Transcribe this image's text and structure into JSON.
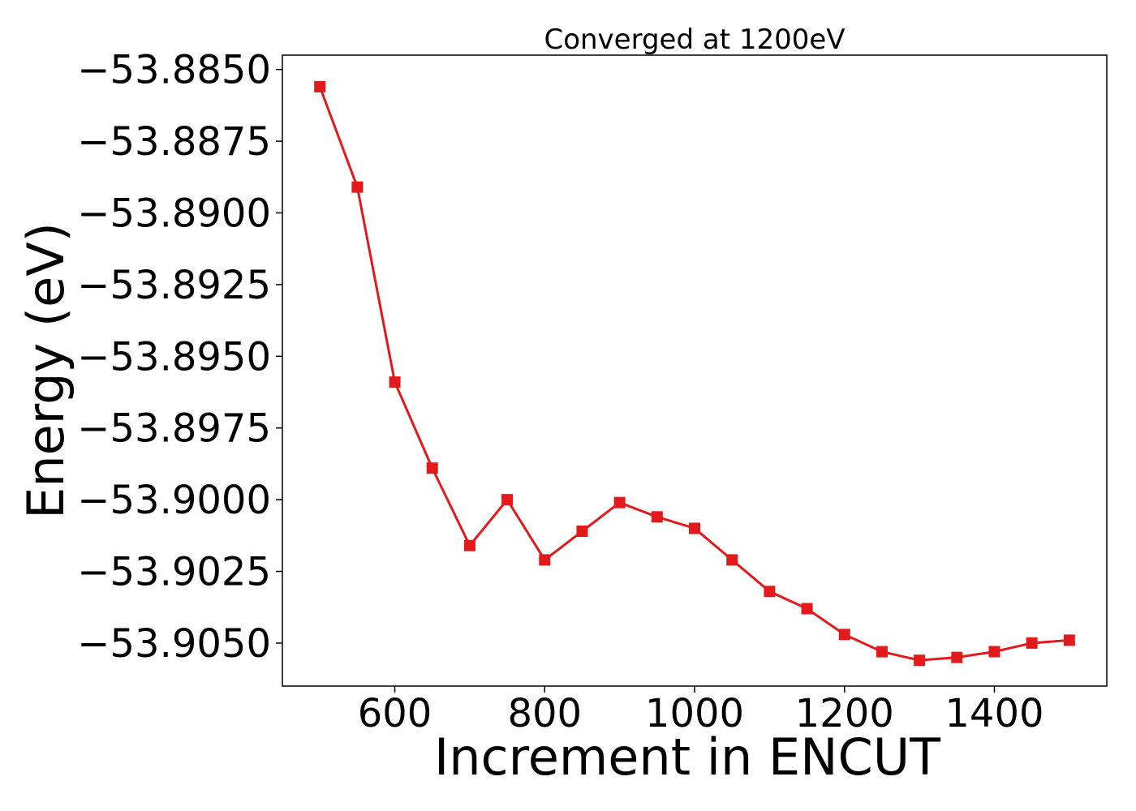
{
  "chart_data": {
    "type": "line",
    "title": "Converged at 1200eV",
    "xlabel": "Increment in ENCUT",
    "ylabel": "Energy (eV)",
    "xlim": [
      450,
      1550
    ],
    "ylim": [
      -53.9065,
      -53.8845
    ],
    "xticks": [
      600,
      800,
      1000,
      1200,
      1400
    ],
    "xtick_labels": [
      "600",
      "800",
      "1000",
      "1200",
      "1400"
    ],
    "yticks": [
      -53.885,
      -53.8875,
      -53.89,
      -53.8925,
      -53.895,
      -53.8975,
      -53.9,
      -53.9025,
      -53.905
    ],
    "ytick_labels": [
      "−53.8850",
      "−53.8875",
      "−53.8900",
      "−53.8925",
      "−53.8950",
      "−53.8975",
      "−53.9000",
      "−53.9025",
      "−53.9050"
    ],
    "grid": false,
    "series": [
      {
        "color": "#e31a1c",
        "marker": "square",
        "x": [
          500,
          550,
          600,
          650,
          700,
          750,
          800,
          850,
          900,
          950,
          1000,
          1050,
          1100,
          1150,
          1200,
          1250,
          1300,
          1350,
          1400,
          1450,
          1500
        ],
        "y": [
          -53.8856,
          -53.8891,
          -53.8959,
          -53.8989,
          -53.9016,
          -53.9,
          -53.9021,
          -53.9011,
          -53.9001,
          -53.9006,
          -53.901,
          -53.9021,
          -53.9032,
          -53.9038,
          -53.9047,
          -53.9053,
          -53.9056,
          -53.9055,
          -53.9053,
          -53.905,
          -53.9049
        ]
      }
    ]
  }
}
